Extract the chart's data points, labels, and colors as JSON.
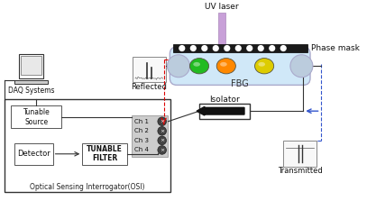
{
  "bg_color": "#ffffff",
  "uv_laser_label": "UV laser",
  "phase_mask_label": "Phase mask",
  "fbg_label": "FBG",
  "reflected_label": "Reflected",
  "transmitted_label": "Transmitted",
  "isolator_label": "Isolator",
  "daq_label": "DAQ Systems",
  "tunable_source_label": "Tunable\nSource",
  "tunable_filter_label": "TUNABLE\nFILTER",
  "detector_label": "Detector",
  "osi_label": "Optical Sensing Interrogator(OSI)",
  "ch_labels": [
    "Ch 1",
    "Ch 2",
    "Ch 3",
    "Ch 4"
  ],
  "fbg_colors": [
    "#22bb22",
    "#ff8800",
    "#ddcc00"
  ],
  "tube_color": "#d0e8f8",
  "tube_outline": "#aaaacc",
  "phase_mask_color": "#1a1a1a",
  "laser_color": "#c8a0d8",
  "laser_outline": "#aa88bb"
}
